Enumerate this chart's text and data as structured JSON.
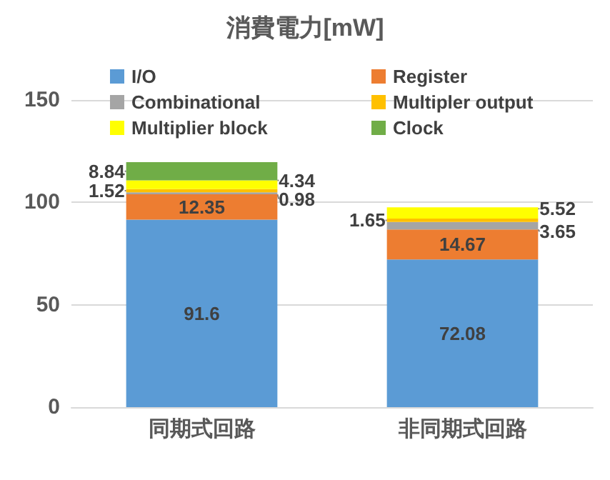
{
  "chart_data": {
    "type": "bar",
    "title": "消費電力[mW]",
    "categories": [
      "同期式回路",
      "非同期式回路"
    ],
    "stacked": true,
    "series": [
      {
        "name": "I/O",
        "color": "#5b9bd5",
        "values": [
          91.6,
          72.08
        ]
      },
      {
        "name": "Register",
        "color": "#ed7d31",
        "values": [
          12.35,
          14.67
        ]
      },
      {
        "name": "Combinational",
        "color": "#a5a5a5",
        "values": [
          0.98,
          3.65
        ]
      },
      {
        "name": "Multipler output",
        "color": "#ffc000",
        "values": [
          1.52,
          1.65
        ]
      },
      {
        "name": "Multiplier block",
        "color": "#ffff00",
        "values": [
          4.34,
          5.52
        ]
      },
      {
        "name": "Clock",
        "color": "#70ad47",
        "values": [
          8.84,
          null
        ]
      }
    ],
    "ylim": [
      0,
      150
    ],
    "yticks": [
      0,
      50,
      100,
      150
    ],
    "grid": "y",
    "legend": "top",
    "data_labels": true
  }
}
